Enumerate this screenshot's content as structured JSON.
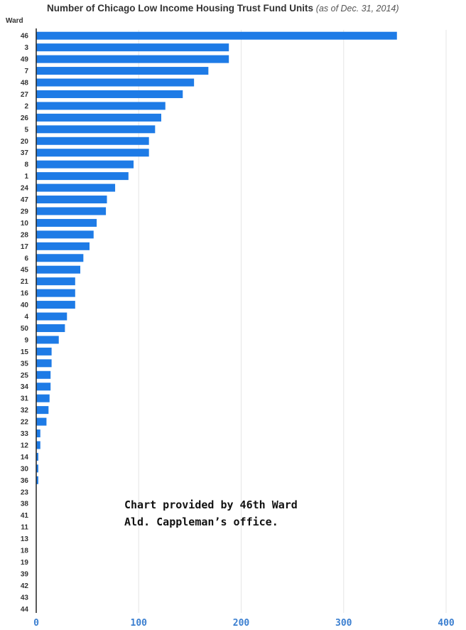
{
  "chart_data": {
    "type": "bar",
    "orientation": "horizontal",
    "title": "Number of Chicago Low Income Housing Trust Fund Units",
    "subtitle": "(as of Dec. 31, 2014)",
    "ylabel": "Ward",
    "xlabel": "",
    "xlim": [
      0,
      400
    ],
    "xticks": [
      0,
      100,
      200,
      300,
      400
    ],
    "grid": "vertical",
    "bar_color": "#1e7be6",
    "tick_color": "#3b7fd0",
    "categories": [
      "46",
      "3",
      "49",
      "7",
      "48",
      "27",
      "2",
      "26",
      "5",
      "20",
      "37",
      "8",
      "1",
      "24",
      "47",
      "29",
      "10",
      "28",
      "17",
      "6",
      "45",
      "21",
      "16",
      "40",
      "4",
      "50",
      "9",
      "15",
      "35",
      "25",
      "34",
      "31",
      "32",
      "22",
      "33",
      "12",
      "14",
      "30",
      "36",
      "23",
      "38",
      "41",
      "11",
      "13",
      "18",
      "19",
      "39",
      "42",
      "43",
      "44"
    ],
    "values": [
      352,
      188,
      188,
      168,
      154,
      143,
      126,
      122,
      116,
      110,
      110,
      95,
      90,
      77,
      69,
      68,
      59,
      56,
      52,
      46,
      43,
      38,
      38,
      38,
      30,
      28,
      22,
      15,
      15,
      14,
      14,
      13,
      12,
      10,
      4,
      4,
      2,
      2,
      2,
      0,
      0,
      0,
      0,
      0,
      0,
      0,
      0,
      0,
      0,
      0
    ]
  },
  "note": {
    "line1": "Chart provided by 46th Ward",
    "line2": "Ald. Cappleman’s office."
  }
}
